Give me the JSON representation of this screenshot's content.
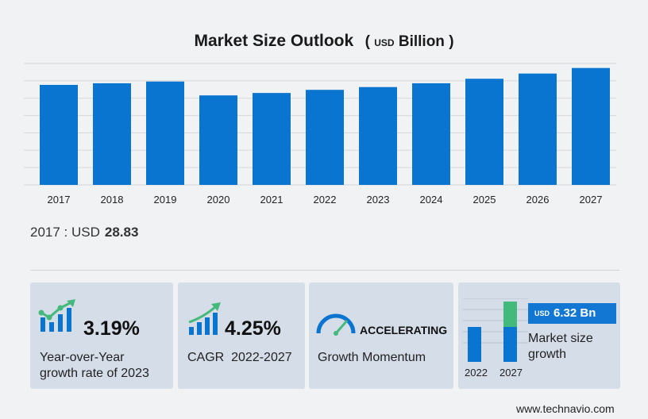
{
  "chart_data": {
    "type": "bar",
    "title": "Market Size Outlook",
    "unit_prefix": "USD",
    "unit_main": "Billion",
    "categories": [
      "2017",
      "2018",
      "2019",
      "2020",
      "2021",
      "2022",
      "2023",
      "2024",
      "2025",
      "2026",
      "2027"
    ],
    "values": [
      28.83,
      29.3,
      29.8,
      25.8,
      26.5,
      27.4,
      28.2,
      29.3,
      30.6,
      32.1,
      33.7
    ],
    "grid": true,
    "color": "#0a74d1"
  },
  "base": {
    "label": "2017 : USD",
    "value": "28.83"
  },
  "cards": {
    "yoy": {
      "value": "3.19%",
      "desc1": "Year-over-Year",
      "desc2": "growth rate of 2023"
    },
    "cagr": {
      "value": "4.25%",
      "desc": "CAGR  2022-2027"
    },
    "momentum": {
      "status": "ACCELERATING",
      "desc": "Growth Momentum"
    },
    "size": {
      "badge_unit": "USD",
      "badge_value": "6.32 Bn",
      "desc1": "Market size",
      "desc2": "growth",
      "year_start": "2022",
      "year_end": "2027"
    }
  },
  "footer": "www.technavio.com",
  "colors": {
    "bar": "#0a74d1",
    "accent_green": "#44b97c",
    "card_bg": "#d5dde8"
  }
}
